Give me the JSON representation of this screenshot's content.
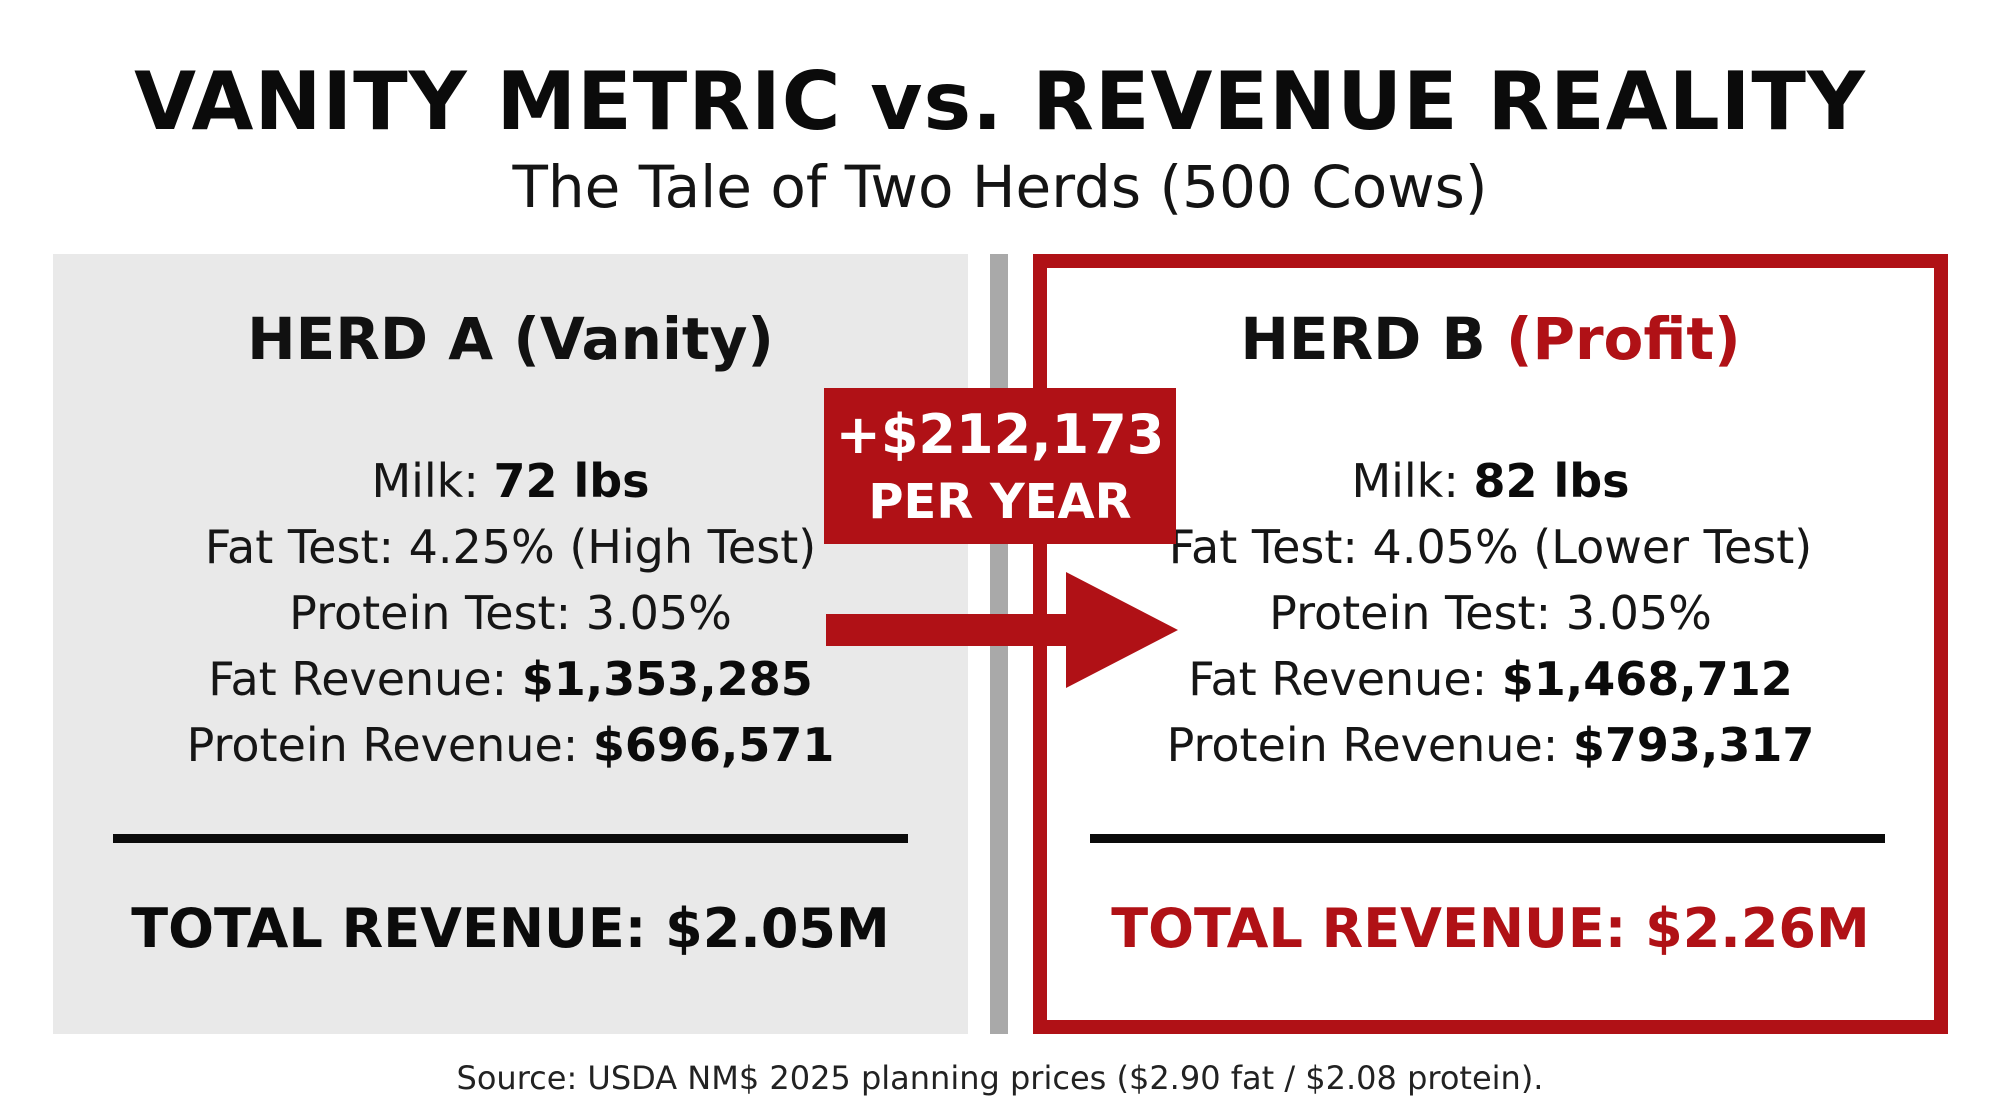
{
  "title": "VANITY METRIC vs. REVENUE REALITY",
  "subtitle": "The Tale of Two Herds (500 Cows)",
  "herd_a": {
    "heading": "HERD A (Vanity)",
    "milk_label": "Milk:",
    "milk_value": "72 lbs",
    "fat_test": "Fat Test: 4.25% (High Test)",
    "protein_test": "Protein Test: 3.05%",
    "fat_revenue_label": "Fat Revenue:",
    "fat_revenue_value": "$1,353,285",
    "protein_revenue_label": "Protein Revenue:",
    "protein_revenue_value": "$696,571",
    "total": "TOTAL REVENUE: $2.05M"
  },
  "herd_b": {
    "heading_main": "HERD B",
    "heading_accent": "(Profit)",
    "milk_label": "Milk:",
    "milk_value": "82 lbs",
    "fat_test": "Fat Test: 4.05% (Lower Test)",
    "protein_test": "Protein Test: 3.05%",
    "fat_revenue_label": "Fat Revenue:",
    "fat_revenue_value": "$1,468,712",
    "protein_revenue_label": "Protein Revenue:",
    "protein_revenue_value": "$793,317",
    "total": "TOTAL REVENUE: $2.26M"
  },
  "difference": {
    "amount": "+$212,173",
    "period": "PER YEAR"
  },
  "source": "Source: USDA NM$ 2025 planning prices ($2.90 fat / $2.08 protein).",
  "colors": {
    "accent": "#b01116",
    "panel_a_bg": "#e9e9e9",
    "divider": "#a9a9a9",
    "text": "#111111"
  },
  "icons": {
    "arrow": "arrow-right-icon"
  }
}
